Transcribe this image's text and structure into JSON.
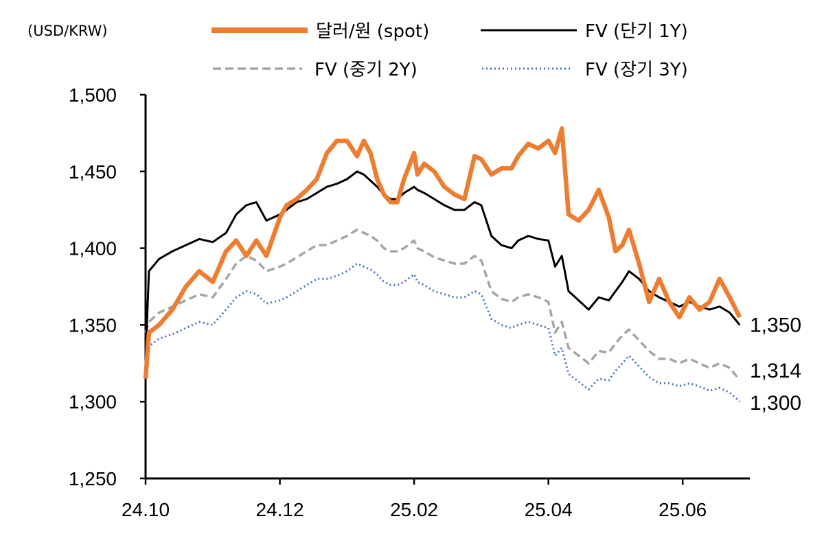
{
  "chart_data": {
    "type": "line",
    "unit_label": "(USD/KRW)",
    "ylim": [
      1250,
      1500
    ],
    "y_ticks": [
      "1,500",
      "1,450",
      "1,400",
      "1,350",
      "1,300",
      "1,250"
    ],
    "y_tick_values": [
      1500,
      1450,
      1400,
      1350,
      1300,
      1250
    ],
    "x_ticks": [
      "24.10",
      "24.12",
      "25.02",
      "25.04",
      "25.06"
    ],
    "x_tick_values": [
      0,
      2,
      4,
      6,
      8
    ],
    "x_range": [
      0,
      9
    ],
    "legend_position": "top",
    "grid": false,
    "series": [
      {
        "name": "달러/원 (spot)",
        "color": "#ED7D31",
        "style": "solid-thick",
        "x": [
          0.0,
          0.05,
          0.2,
          0.4,
          0.6,
          0.8,
          1.0,
          1.2,
          1.35,
          1.5,
          1.65,
          1.8,
          2.0,
          2.1,
          2.25,
          2.4,
          2.55,
          2.7,
          2.85,
          3.0,
          3.15,
          3.25,
          3.35,
          3.45,
          3.55,
          3.65,
          3.75,
          3.85,
          4.0,
          4.05,
          4.15,
          4.3,
          4.45,
          4.6,
          4.75,
          4.9,
          5.0,
          5.15,
          5.3,
          5.45,
          5.55,
          5.7,
          5.85,
          6.0,
          6.1,
          6.2,
          6.3,
          6.45,
          6.6,
          6.75,
          6.9,
          7.0,
          7.1,
          7.2,
          7.35,
          7.5,
          7.65,
          7.8,
          7.95,
          8.1,
          8.25,
          8.4,
          8.55,
          8.7,
          8.85
        ],
        "y": [
          1315,
          1345,
          1350,
          1360,
          1375,
          1385,
          1378,
          1398,
          1405,
          1395,
          1405,
          1395,
          1420,
          1428,
          1432,
          1438,
          1445,
          1462,
          1470,
          1470,
          1460,
          1470,
          1462,
          1445,
          1435,
          1430,
          1430,
          1445,
          1462,
          1448,
          1455,
          1450,
          1440,
          1435,
          1432,
          1460,
          1458,
          1448,
          1452,
          1452,
          1460,
          1468,
          1465,
          1470,
          1462,
          1478,
          1422,
          1418,
          1425,
          1438,
          1420,
          1398,
          1402,
          1412,
          1390,
          1365,
          1380,
          1365,
          1355,
          1368,
          1360,
          1365,
          1380,
          1368,
          1355
        ]
      },
      {
        "name": "FV (단기 1Y)",
        "color": "#000000",
        "style": "solid",
        "x": [
          0.0,
          0.05,
          0.2,
          0.4,
          0.6,
          0.8,
          1.0,
          1.2,
          1.35,
          1.5,
          1.65,
          1.8,
          2.0,
          2.1,
          2.25,
          2.4,
          2.55,
          2.7,
          2.85,
          3.0,
          3.15,
          3.25,
          3.35,
          3.45,
          3.55,
          3.65,
          3.75,
          3.85,
          4.0,
          4.05,
          4.15,
          4.3,
          4.45,
          4.6,
          4.75,
          4.9,
          5.0,
          5.15,
          5.3,
          5.45,
          5.55,
          5.7,
          5.85,
          6.0,
          6.1,
          6.2,
          6.3,
          6.45,
          6.6,
          6.75,
          6.9,
          7.0,
          7.1,
          7.2,
          7.35,
          7.5,
          7.65,
          7.8,
          7.95,
          8.1,
          8.25,
          8.4,
          8.55,
          8.7,
          8.85
        ],
        "y": [
          1328,
          1385,
          1393,
          1398,
          1402,
          1406,
          1404,
          1410,
          1422,
          1428,
          1430,
          1418,
          1422,
          1425,
          1430,
          1432,
          1436,
          1440,
          1442,
          1445,
          1450,
          1448,
          1444,
          1440,
          1435,
          1432,
          1432,
          1436,
          1440,
          1438,
          1436,
          1432,
          1428,
          1425,
          1425,
          1430,
          1428,
          1408,
          1402,
          1400,
          1405,
          1408,
          1406,
          1405,
          1388,
          1395,
          1372,
          1366,
          1360,
          1368,
          1366,
          1372,
          1378,
          1385,
          1380,
          1372,
          1368,
          1365,
          1362,
          1365,
          1362,
          1360,
          1362,
          1358,
          1350
        ]
      },
      {
        "name": "FV (중기 2Y)",
        "color": "#A5A5A5",
        "style": "dashed",
        "x": [
          0.0,
          0.05,
          0.2,
          0.4,
          0.6,
          0.8,
          1.0,
          1.2,
          1.35,
          1.5,
          1.65,
          1.8,
          2.0,
          2.1,
          2.25,
          2.4,
          2.55,
          2.7,
          2.85,
          3.0,
          3.15,
          3.25,
          3.35,
          3.45,
          3.55,
          3.65,
          3.75,
          3.85,
          4.0,
          4.05,
          4.15,
          4.3,
          4.45,
          4.6,
          4.75,
          4.9,
          5.0,
          5.15,
          5.3,
          5.45,
          5.55,
          5.7,
          5.85,
          6.0,
          6.1,
          6.2,
          6.3,
          6.45,
          6.6,
          6.75,
          6.9,
          7.0,
          7.1,
          7.2,
          7.35,
          7.5,
          7.65,
          7.8,
          7.95,
          8.1,
          8.25,
          8.4,
          8.55,
          8.7,
          8.85
        ],
        "y": [
          1345,
          1352,
          1358,
          1362,
          1366,
          1370,
          1368,
          1380,
          1390,
          1395,
          1392,
          1385,
          1388,
          1390,
          1394,
          1398,
          1402,
          1402,
          1405,
          1408,
          1412,
          1410,
          1408,
          1405,
          1400,
          1398,
          1398,
          1400,
          1405,
          1400,
          1398,
          1394,
          1392,
          1390,
          1390,
          1395,
          1392,
          1372,
          1367,
          1365,
          1368,
          1370,
          1368,
          1365,
          1345,
          1352,
          1335,
          1330,
          1325,
          1333,
          1332,
          1338,
          1343,
          1347,
          1340,
          1333,
          1328,
          1328,
          1325,
          1328,
          1325,
          1322,
          1325,
          1322,
          1314
        ]
      },
      {
        "name": "FV (장기 3Y)",
        "color": "#4472C4",
        "style": "dotted",
        "x": [
          0.0,
          0.05,
          0.2,
          0.4,
          0.6,
          0.8,
          1.0,
          1.2,
          1.35,
          1.5,
          1.65,
          1.8,
          2.0,
          2.1,
          2.25,
          2.4,
          2.55,
          2.7,
          2.85,
          3.0,
          3.15,
          3.25,
          3.35,
          3.45,
          3.55,
          3.65,
          3.75,
          3.85,
          4.0,
          4.05,
          4.15,
          4.3,
          4.45,
          4.6,
          4.75,
          4.9,
          5.0,
          5.15,
          5.3,
          5.45,
          5.55,
          5.7,
          5.85,
          6.0,
          6.1,
          6.2,
          6.3,
          6.45,
          6.6,
          6.75,
          6.9,
          7.0,
          7.1,
          7.2,
          7.35,
          7.5,
          7.65,
          7.8,
          7.95,
          8.1,
          8.25,
          8.4,
          8.55,
          8.7,
          8.85
        ],
        "y": [
          1330,
          1336,
          1341,
          1344,
          1348,
          1352,
          1350,
          1360,
          1368,
          1372,
          1370,
          1364,
          1366,
          1368,
          1372,
          1376,
          1380,
          1380,
          1382,
          1385,
          1390,
          1388,
          1386,
          1383,
          1378,
          1376,
          1376,
          1378,
          1383,
          1378,
          1376,
          1372,
          1370,
          1368,
          1368,
          1372,
          1370,
          1354,
          1350,
          1348,
          1350,
          1352,
          1350,
          1348,
          1330,
          1335,
          1318,
          1313,
          1308,
          1315,
          1314,
          1320,
          1325,
          1330,
          1323,
          1316,
          1312,
          1312,
          1310,
          1312,
          1310,
          1307,
          1309,
          1306,
          1300
        ]
      }
    ],
    "end_labels": [
      "1,350",
      "1,314",
      "1,300"
    ]
  }
}
